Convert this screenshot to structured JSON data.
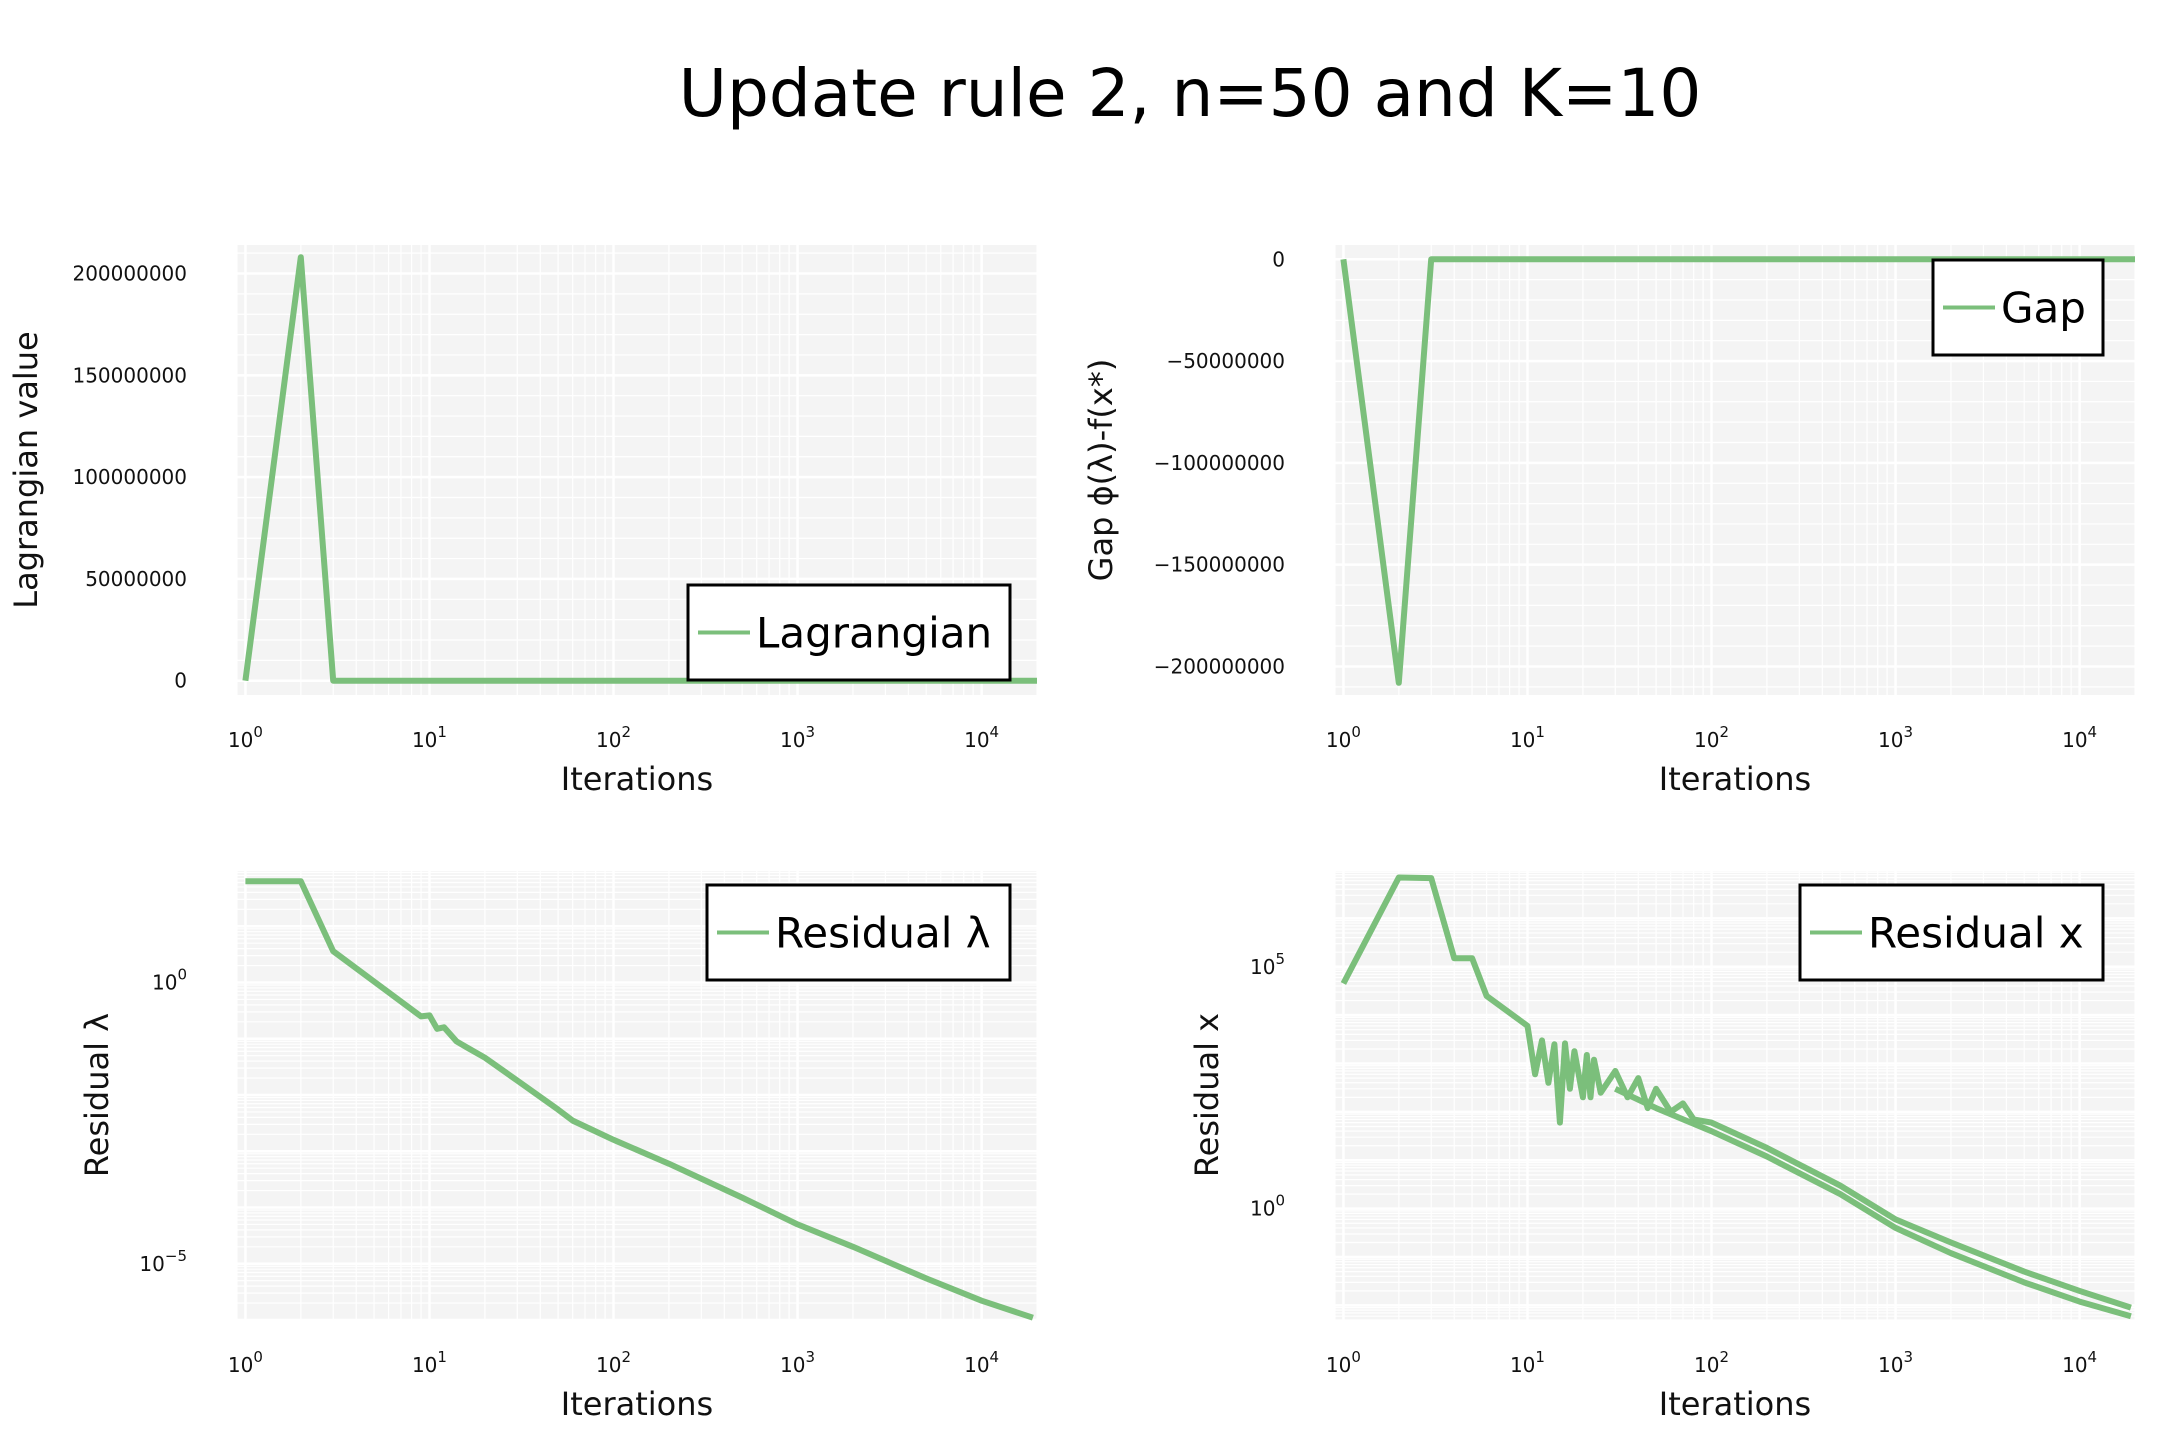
{
  "title": "Update rule 2, n=50 and K=10",
  "colors": {
    "line": "#7bbf7b",
    "plot_bg": "#f4f4f4",
    "grid": "#ffffff"
  },
  "chart_data": [
    {
      "id": "lagrangian",
      "type": "line",
      "xscale": "log",
      "yscale": "linear",
      "xlim": [
        0.9,
        20000
      ],
      "ylim": [
        -7000000,
        214000000
      ],
      "xlabel": "Iterations",
      "ylabel": "Lagrangian value",
      "legend": {
        "label": "Lagrangian",
        "position": "bottom-right"
      },
      "x_ticks": [
        {
          "v": 1,
          "label": "10",
          "exp": "0"
        },
        {
          "v": 10,
          "label": "10",
          "exp": "1"
        },
        {
          "v": 100,
          "label": "10",
          "exp": "2"
        },
        {
          "v": 1000,
          "label": "10",
          "exp": "3"
        },
        {
          "v": 10000,
          "label": "10",
          "exp": "4"
        }
      ],
      "y_ticks": [
        {
          "v": 0,
          "label": "0"
        },
        {
          "v": 50000000,
          "label": "50000000"
        },
        {
          "v": 100000000,
          "label": "100000000"
        },
        {
          "v": 150000000,
          "label": "150000000"
        },
        {
          "v": 200000000,
          "label": "200000000"
        }
      ],
      "series": [
        {
          "x": [
            1,
            2,
            3,
            20000
          ],
          "y": [
            0,
            208000000,
            0,
            0
          ]
        }
      ]
    },
    {
      "id": "gap",
      "type": "line",
      "xscale": "log",
      "yscale": "linear",
      "xlim": [
        0.9,
        20000
      ],
      "ylim": [
        -214000000,
        7000000
      ],
      "xlabel": "Iterations",
      "ylabel": "Gap ϕ(λ)-f(x*)",
      "legend": {
        "label": "Gap",
        "position": "top-right"
      },
      "x_ticks": [
        {
          "v": 1,
          "label": "10",
          "exp": "0"
        },
        {
          "v": 10,
          "label": "10",
          "exp": "1"
        },
        {
          "v": 100,
          "label": "10",
          "exp": "2"
        },
        {
          "v": 1000,
          "label": "10",
          "exp": "3"
        },
        {
          "v": 10000,
          "label": "10",
          "exp": "4"
        }
      ],
      "y_ticks": [
        {
          "v": 0,
          "label": "0"
        },
        {
          "v": -50000000,
          "label": "−50000000"
        },
        {
          "v": -100000000,
          "label": "−100000000"
        },
        {
          "v": -150000000,
          "label": "−150000000"
        },
        {
          "v": -200000000,
          "label": "−200000000"
        }
      ],
      "series": [
        {
          "x": [
            1,
            2,
            3,
            20000
          ],
          "y": [
            0,
            -208000000,
            0,
            0
          ]
        }
      ]
    },
    {
      "id": "residual-lambda",
      "type": "line",
      "xscale": "log",
      "yscale": "log",
      "xlim": [
        0.9,
        20000
      ],
      "ylim": [
        1e-06,
        100
      ],
      "xlabel": "Iterations",
      "ylabel": "Residual λ",
      "legend": {
        "label": "Residual λ",
        "position": "top-right"
      },
      "x_ticks": [
        {
          "v": 1,
          "label": "10",
          "exp": "0"
        },
        {
          "v": 10,
          "label": "10",
          "exp": "1"
        },
        {
          "v": 100,
          "label": "10",
          "exp": "2"
        },
        {
          "v": 1000,
          "label": "10",
          "exp": "3"
        },
        {
          "v": 10000,
          "label": "10",
          "exp": "4"
        }
      ],
      "y_ticks": [
        {
          "v": 1,
          "label": "10",
          "exp": "0"
        },
        {
          "v": 1e-05,
          "label": "10",
          "exp": "−5"
        }
      ],
      "series": [
        {
          "x": [
            1,
            2,
            3,
            9,
            10,
            11,
            12,
            14,
            16,
            20,
            30,
            50,
            60,
            100,
            200,
            500,
            1000,
            2000,
            5000,
            10000,
            19000
          ],
          "y": [
            63,
            63,
            3.6,
            0.25,
            0.26,
            0.15,
            0.16,
            0.09,
            0.07,
            0.046,
            0.018,
            0.0055,
            0.0035,
            0.0016,
            0.0006,
            0.00015,
            5e-05,
            2e-05,
            5.5e-06,
            2.2e-06,
            1.1e-06
          ]
        }
      ]
    },
    {
      "id": "residual-x",
      "type": "line",
      "xscale": "log",
      "yscale": "log",
      "xlim": [
        0.9,
        20000
      ],
      "ylim": [
        0.005,
        10000000
      ],
      "xlabel": "Iterations",
      "ylabel": "Residual x",
      "legend": {
        "label": "Residual x",
        "position": "top-right"
      },
      "x_ticks": [
        {
          "v": 1,
          "label": "10",
          "exp": "0"
        },
        {
          "v": 10,
          "label": "10",
          "exp": "1"
        },
        {
          "v": 100,
          "label": "10",
          "exp": "2"
        },
        {
          "v": 1000,
          "label": "10",
          "exp": "3"
        },
        {
          "v": 10000,
          "label": "10",
          "exp": "4"
        }
      ],
      "y_ticks": [
        {
          "v": 1,
          "label": "10",
          "exp": "0"
        },
        {
          "v": 100000,
          "label": "10",
          "exp": "5"
        }
      ],
      "series": [
        {
          "x": [
            1,
            2,
            3,
            4,
            5,
            6,
            10,
            11,
            12,
            13,
            14,
            15,
            16,
            17,
            18,
            20,
            21,
            22,
            23,
            25,
            30,
            35,
            40,
            45,
            50,
            60,
            70,
            80,
            100,
            200,
            500,
            1000,
            2000,
            5000,
            10000,
            19000
          ],
          "y": [
            45000,
            7000000,
            6800000,
            150000,
            150000,
            25000,
            6000,
            600,
            3000,
            400,
            2500,
            60,
            2600,
            300,
            1800,
            200,
            1500,
            200,
            1200,
            250,
            700,
            200,
            500,
            120,
            300,
            100,
            150,
            70,
            60,
            18,
            3,
            0.6,
            0.2,
            0.05,
            0.02,
            0.009
          ]
        },
        {
          "x": [
            30,
            50,
            100,
            200,
            500,
            1000,
            2000,
            5000,
            10000,
            19000
          ],
          "y": [
            300,
            120,
            40,
            12,
            2,
            0.4,
            0.12,
            0.03,
            0.012,
            0.006
          ]
        }
      ]
    }
  ]
}
